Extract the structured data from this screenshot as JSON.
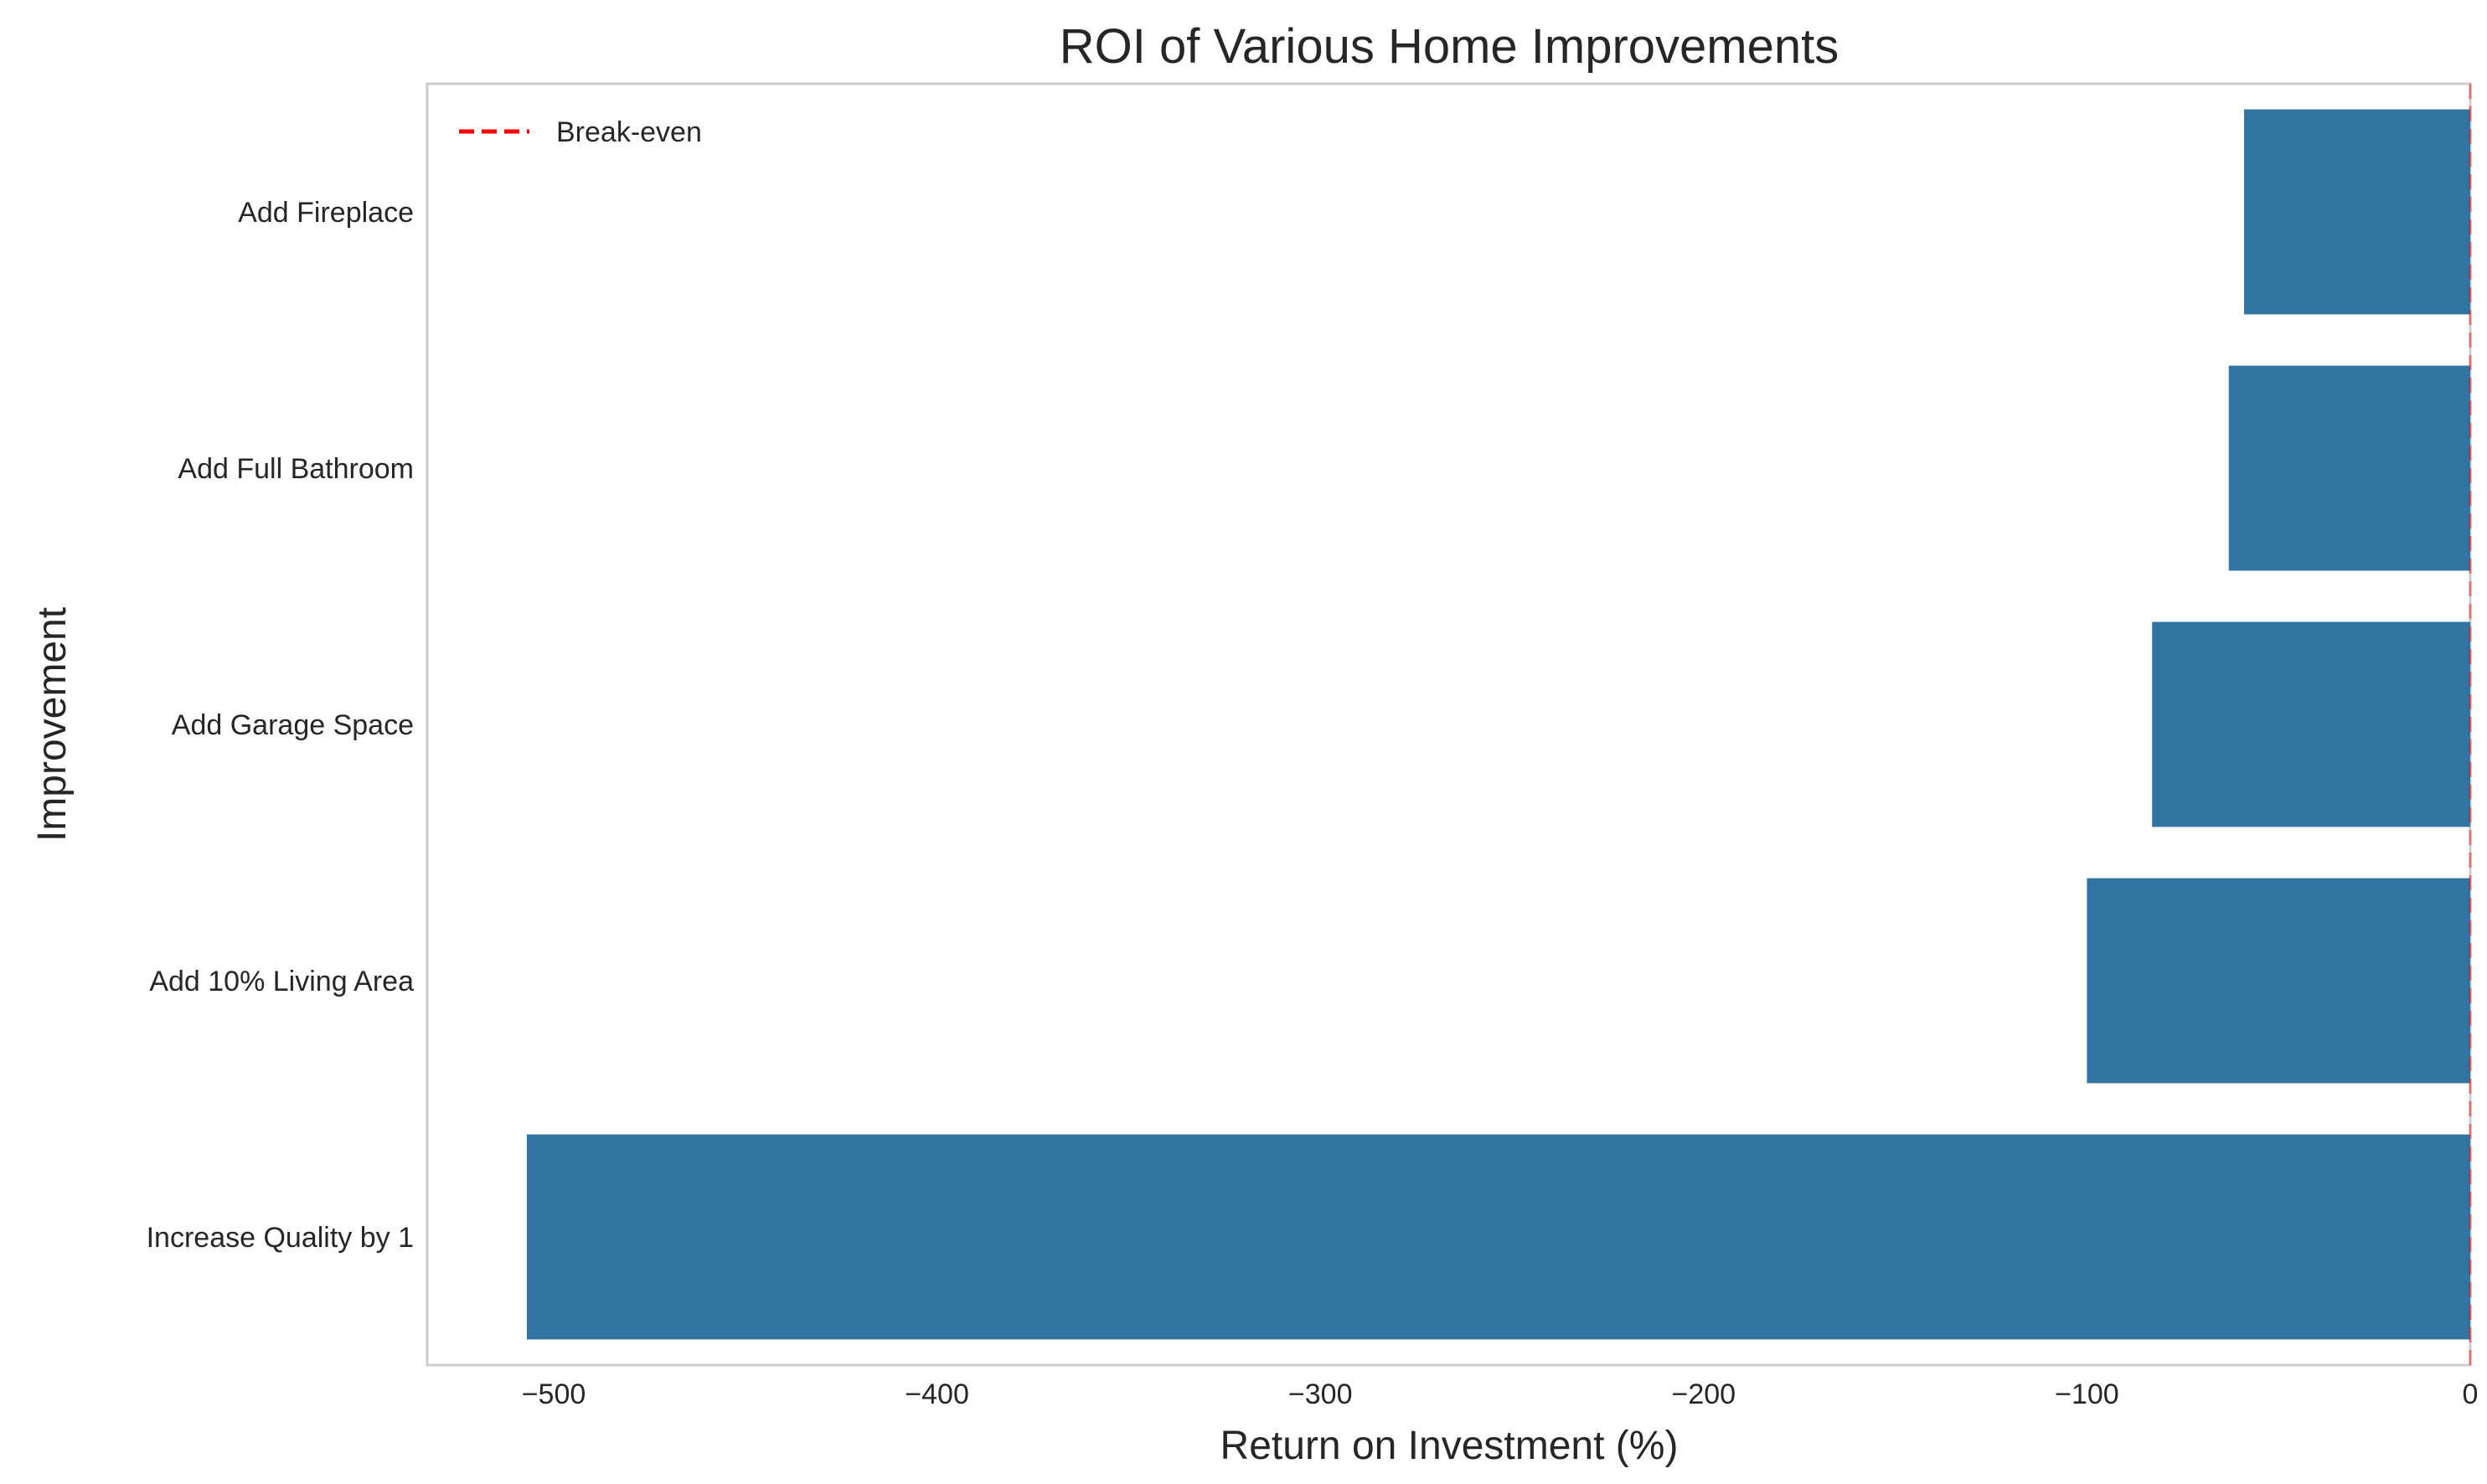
{
  "chart_data": {
    "type": "bar",
    "orientation": "horizontal",
    "title": "ROI of Various Home Improvements",
    "xlabel": "Return on Investment (%)",
    "ylabel": "Improvement",
    "categories": [
      "Add Fireplace",
      "Add Full Bathroom",
      "Add Garage Space",
      "Add 10% Living Area",
      "Increase Quality by 1"
    ],
    "values": [
      -59,
      -63,
      -83,
      -100,
      -507
    ],
    "xlim": [
      -533,
      0
    ],
    "xticks": [
      -500,
      -400,
      -300,
      -200,
      -100,
      0
    ],
    "xtick_labels": [
      "−500",
      "−400",
      "−300",
      "−200",
      "−100",
      "0"
    ],
    "bar_color": "#3274a1",
    "reference_line": {
      "x": 0,
      "label": "Break-even",
      "color": "#ff0000",
      "style": "dashed"
    },
    "legend_position": "top-left",
    "grid": false
  }
}
